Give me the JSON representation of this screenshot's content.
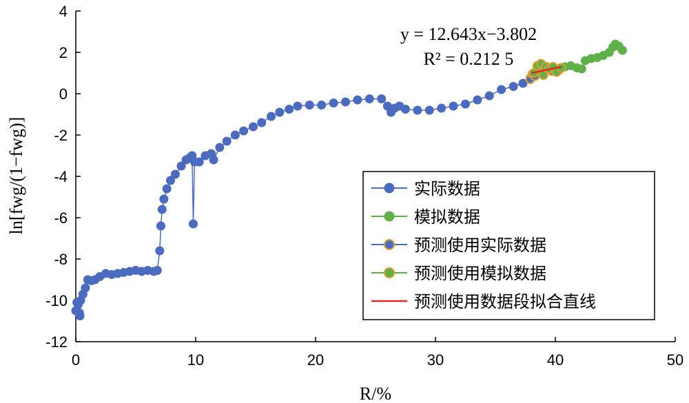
{
  "chart_data": {
    "type": "scatter",
    "xlabel": "R/%",
    "ylabel": "ln[fwg/(1−fwg)]",
    "xlim": [
      0,
      50
    ],
    "ylim": [
      -12,
      4
    ],
    "x_ticks": [
      0,
      10,
      20,
      30,
      40,
      50
    ],
    "y_ticks": [
      -12,
      -10,
      -8,
      -6,
      -4,
      -2,
      0,
      2,
      4
    ],
    "grid": false,
    "legend_position": "bottom-right",
    "annotation": {
      "equation": "y = 12.643x−3.802",
      "r_squared": "R² = 0.212 5"
    },
    "series": [
      {
        "name": "实际数据",
        "color": "#4a6bc0",
        "marker": "circle",
        "connected": true,
        "points": [
          [
            0.0,
            -10.5
          ],
          [
            0.1,
            -10.1
          ],
          [
            0.2,
            -10.2
          ],
          [
            0.3,
            -10.6
          ],
          [
            0.35,
            -10.75
          ],
          [
            0.4,
            -10.0
          ],
          [
            0.6,
            -9.7
          ],
          [
            0.8,
            -9.4
          ],
          [
            1.0,
            -9.0
          ],
          [
            1.3,
            -9.05
          ],
          [
            1.6,
            -9.0
          ],
          [
            2.0,
            -8.85
          ],
          [
            2.5,
            -8.7
          ],
          [
            3.0,
            -8.75
          ],
          [
            3.5,
            -8.7
          ],
          [
            4.0,
            -8.65
          ],
          [
            4.5,
            -8.6
          ],
          [
            5.0,
            -8.55
          ],
          [
            5.5,
            -8.6
          ],
          [
            6.0,
            -8.55
          ],
          [
            6.5,
            -8.6
          ],
          [
            6.8,
            -8.55
          ],
          [
            7.0,
            -7.6
          ],
          [
            7.1,
            -6.4
          ],
          [
            7.2,
            -5.6
          ],
          [
            7.35,
            -5.1
          ],
          [
            7.6,
            -4.6
          ],
          [
            7.9,
            -4.2
          ],
          [
            8.3,
            -3.9
          ],
          [
            8.8,
            -3.5
          ],
          [
            9.2,
            -3.2
          ],
          [
            9.5,
            -3.1
          ],
          [
            9.7,
            -3.0
          ],
          [
            9.8,
            -6.3
          ],
          [
            9.9,
            -3.3
          ],
          [
            10.3,
            -3.3
          ],
          [
            10.8,
            -3.0
          ],
          [
            11.3,
            -2.9
          ],
          [
            11.5,
            -3.2
          ],
          [
            12.0,
            -2.6
          ],
          [
            12.6,
            -2.3
          ],
          [
            13.3,
            -2.0
          ],
          [
            14.0,
            -1.8
          ],
          [
            14.8,
            -1.6
          ],
          [
            15.5,
            -1.4
          ],
          [
            16.3,
            -1.1
          ],
          [
            17.0,
            -0.9
          ],
          [
            17.8,
            -0.75
          ],
          [
            18.5,
            -0.6
          ],
          [
            19.5,
            -0.55
          ],
          [
            20.5,
            -0.55
          ],
          [
            21.5,
            -0.45
          ],
          [
            22.5,
            -0.4
          ],
          [
            23.5,
            -0.3
          ],
          [
            24.5,
            -0.25
          ],
          [
            25.5,
            -0.25
          ],
          [
            26.0,
            -0.6
          ],
          [
            26.3,
            -0.9
          ],
          [
            26.6,
            -0.7
          ],
          [
            27.0,
            -0.6
          ],
          [
            27.5,
            -0.75
          ],
          [
            28.5,
            -0.8
          ],
          [
            29.5,
            -0.8
          ],
          [
            30.5,
            -0.7
          ],
          [
            31.5,
            -0.6
          ],
          [
            32.5,
            -0.5
          ],
          [
            33.5,
            -0.3
          ],
          [
            34.5,
            -0.1
          ],
          [
            35.5,
            0.2
          ],
          [
            36.5,
            0.35
          ],
          [
            37.3,
            0.5
          ],
          [
            37.9,
            0.75
          ]
        ]
      },
      {
        "name": "模拟数据",
        "color": "#5eb048",
        "marker": "circle",
        "connected": true,
        "points": [
          [
            40.3,
            1.2
          ],
          [
            40.8,
            1.3
          ],
          [
            41.3,
            1.35
          ],
          [
            41.8,
            1.25
          ],
          [
            42.2,
            1.2
          ],
          [
            42.5,
            1.6
          ],
          [
            43.0,
            1.7
          ],
          [
            43.5,
            1.75
          ],
          [
            44.0,
            1.85
          ],
          [
            44.5,
            2.0
          ],
          [
            44.8,
            2.25
          ],
          [
            45.0,
            2.4
          ],
          [
            45.3,
            2.3
          ],
          [
            45.6,
            2.1
          ]
        ]
      },
      {
        "name": "预测使用实际数据",
        "color": "#4a6bc0",
        "edge_color": "#d9a12c",
        "marker": "circle",
        "connected": false,
        "points": [
          [
            37.9,
            0.7
          ],
          [
            38.1,
            0.95
          ],
          [
            38.3,
            0.85
          ],
          [
            38.5,
            1.2
          ],
          [
            38.7,
            1.05
          ],
          [
            38.9,
            1.3
          ],
          [
            39.1,
            1.15
          ],
          [
            39.4,
            1.25
          ],
          [
            39.7,
            1.1
          ],
          [
            40.0,
            1.2
          ],
          [
            40.3,
            1.15
          ]
        ]
      },
      {
        "name": "预测使用模拟数据",
        "color": "#5eb048",
        "edge_color": "#d9a12c",
        "marker": "circle",
        "connected": false,
        "points": [
          [
            38.2,
            1.0
          ],
          [
            38.5,
            1.35
          ],
          [
            38.8,
            1.45
          ],
          [
            39.0,
            0.9
          ],
          [
            39.2,
            1.3
          ],
          [
            39.5,
            1.2
          ],
          [
            39.8,
            1.3
          ],
          [
            40.1,
            1.05
          ],
          [
            40.5,
            1.25
          ]
        ]
      },
      {
        "name": "预测使用数据段拟合直线",
        "color": "#e0262b",
        "marker": "line",
        "connected": true,
        "points": [
          [
            38.0,
            1.0
          ],
          [
            40.5,
            1.3
          ]
        ]
      }
    ]
  }
}
